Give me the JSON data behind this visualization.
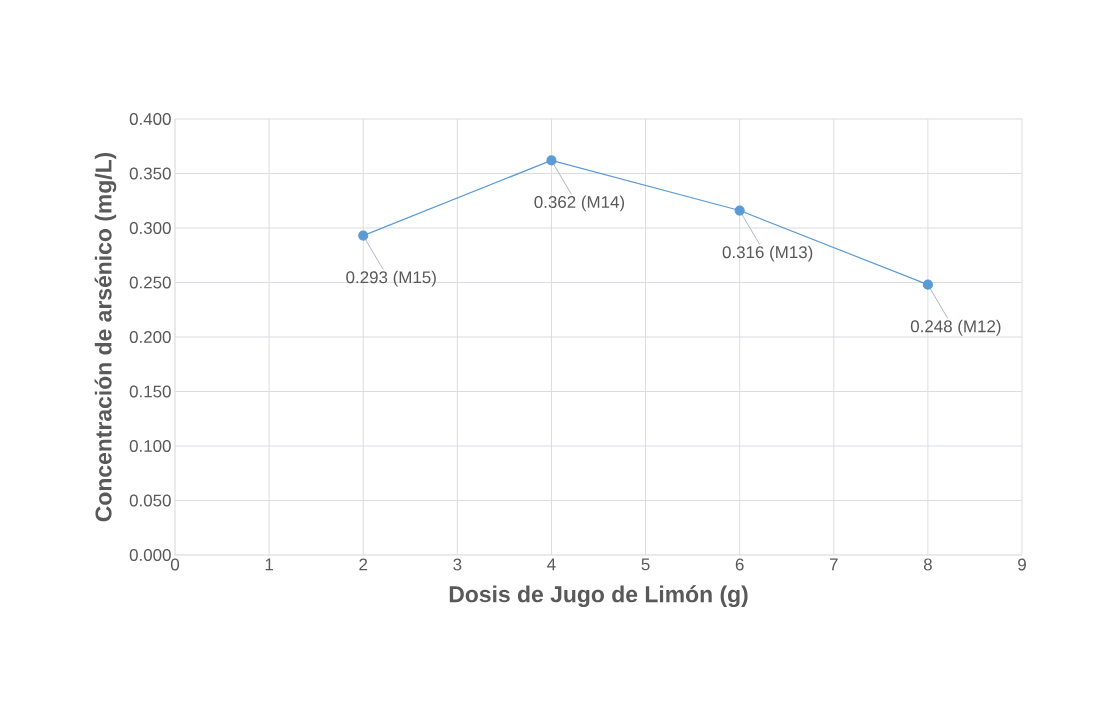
{
  "chart_data": {
    "type": "line",
    "xlabel": "Dosis de Jugo de Limón (g)",
    "ylabel": "Concentración de arsénico (mg/L)",
    "x": [
      2,
      4,
      6,
      8
    ],
    "values": [
      0.293,
      0.362,
      0.316,
      0.248
    ],
    "value_labels": [
      "0.293 (M15)",
      "0.362 (M14)",
      "0.316 (M13)",
      "0.248 (M12)"
    ],
    "color": "#5b9bd5",
    "marker": "circle",
    "grid": true,
    "xlim": [
      0,
      9
    ],
    "ylim": [
      0,
      0.4
    ],
    "xticks": [
      0,
      1,
      2,
      3,
      4,
      5,
      6,
      7,
      8,
      9
    ],
    "yticks": [
      {
        "value": 0,
        "label": "0.000"
      },
      {
        "value": 0.05,
        "label": "0.050"
      },
      {
        "value": 0.1,
        "label": "0.100"
      },
      {
        "value": 0.15,
        "label": "0.150"
      },
      {
        "value": 0.2,
        "label": "0.200"
      },
      {
        "value": 0.25,
        "label": "0.250"
      },
      {
        "value": 0.3,
        "label": "0.300"
      },
      {
        "value": 0.35,
        "label": "0.350"
      },
      {
        "value": 0.4,
        "label": "0.400"
      }
    ]
  }
}
